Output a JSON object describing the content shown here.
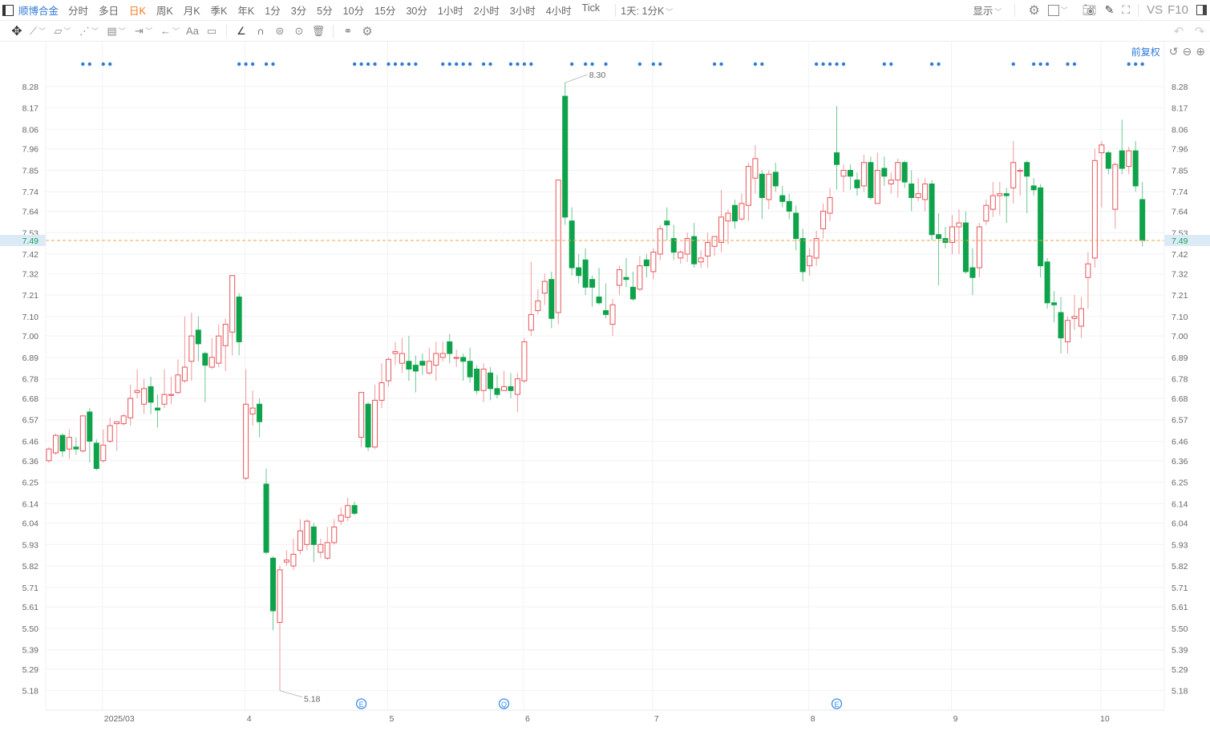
{
  "toolbar": {
    "panel_icon": "panel-toggle-icon",
    "symbol": "顺博合金",
    "timeframes": [
      "分时",
      "多日",
      "日K",
      "周K",
      "月K",
      "季K",
      "年K",
      "1分",
      "3分",
      "5分",
      "10分",
      "15分",
      "30分",
      "1小时",
      "2小时",
      "3小时",
      "4小时",
      "Tick"
    ],
    "active_timeframe": "日K",
    "period_select": "1天: 1分K",
    "display_label": "显示",
    "right_icons": [
      "gear-icon",
      "square-icon",
      "camera-icon",
      "pencil-icon",
      "fullscreen-icon"
    ],
    "vs_label": "VS",
    "f10_label": "F10"
  },
  "drawing_tools": {
    "icons": [
      "move-icon",
      "line-tool-icon",
      "channel-tool-icon",
      "wave-tool-icon",
      "fib-tool-icon",
      "range-tool-icon",
      "arrow-tool-icon",
      "text-tool-icon",
      "comment-tool-icon",
      "angle-tool-icon",
      "magnet-icon",
      "lock-icon",
      "eye-icon",
      "trash-icon",
      "link-icon",
      "settings-icon"
    ],
    "text_tool": "Aa",
    "undo_icon": "undo-icon",
    "redo_icon": "redo-icon"
  },
  "adjust": {
    "label": "前复权",
    "icons": [
      "reset-icon",
      "zoom-out-icon",
      "zoom-in-icon"
    ]
  },
  "colors": {
    "up": "#e8555a",
    "down": "#0ea34a",
    "accent": "#2f7bd8",
    "active": "#f07a1a",
    "last_price_line": "#f0a050"
  },
  "chart_data": {
    "type": "candlestick",
    "ohlc_order": [
      "open",
      "high",
      "low",
      "close"
    ],
    "ylim": [
      5.08,
      8.51
    ],
    "yticks": [
      "8.28",
      "8.17",
      "8.06",
      "7.96",
      "7.85",
      "7.74",
      "7.64",
      "7.53",
      "7.42",
      "7.32",
      "7.21",
      "7.10",
      "7.00",
      "6.89",
      "6.78",
      "6.68",
      "6.57",
      "6.46",
      "6.36",
      "6.25",
      "6.14",
      "6.04",
      "5.93",
      "5.82",
      "5.71",
      "5.61",
      "5.50",
      "5.39",
      "5.29",
      "5.18"
    ],
    "xticks": [
      "2025/03",
      "4",
      "5",
      "6",
      "7",
      "8",
      "9",
      "10"
    ],
    "last_price": "7.49",
    "max_label": "8.30",
    "min_label": "5.18",
    "grid": true,
    "event_markers": [
      "E",
      "Q",
      "E"
    ],
    "candles": [
      [
        6.36,
        6.43,
        6.35,
        6.42
      ],
      [
        6.4,
        6.5,
        6.39,
        6.49
      ],
      [
        6.49,
        6.5,
        6.38,
        6.41
      ],
      [
        6.42,
        6.52,
        6.37,
        6.48
      ],
      [
        6.43,
        6.48,
        6.39,
        6.42
      ],
      [
        6.41,
        6.59,
        6.4,
        6.59
      ],
      [
        6.61,
        6.63,
        6.35,
        6.46
      ],
      [
        6.45,
        6.47,
        6.31,
        6.32
      ],
      [
        6.36,
        6.52,
        6.35,
        6.44
      ],
      [
        6.46,
        6.58,
        6.45,
        6.54
      ],
      [
        6.55,
        6.56,
        6.41,
        6.56
      ],
      [
        6.55,
        6.6,
        6.54,
        6.59
      ],
      [
        6.58,
        6.75,
        6.54,
        6.68
      ],
      [
        6.71,
        6.83,
        6.68,
        6.72
      ],
      [
        6.65,
        6.78,
        6.6,
        6.73
      ],
      [
        6.74,
        6.79,
        6.6,
        6.66
      ],
      [
        6.63,
        6.7,
        6.53,
        6.62
      ],
      [
        6.65,
        6.83,
        6.63,
        6.7
      ],
      [
        6.7,
        6.79,
        6.65,
        6.7
      ],
      [
        6.71,
        6.88,
        6.7,
        6.8
      ],
      [
        6.77,
        7.1,
        6.76,
        6.84
      ],
      [
        6.87,
        7.12,
        6.77,
        7.0
      ],
      [
        7.03,
        7.1,
        6.87,
        6.96
      ],
      [
        6.91,
        6.92,
        6.66,
        6.85
      ],
      [
        6.84,
        6.99,
        6.83,
        6.89
      ],
      [
        6.86,
        7.06,
        6.84,
        7.0
      ],
      [
        6.95,
        7.09,
        6.82,
        7.06
      ],
      [
        7.02,
        7.31,
        6.9,
        7.31
      ],
      [
        7.2,
        7.22,
        6.9,
        6.97
      ],
      [
        6.27,
        6.83,
        6.26,
        6.65
      ],
      [
        6.6,
        6.72,
        6.54,
        6.63
      ],
      [
        6.65,
        6.68,
        6.48,
        6.56
      ],
      [
        6.24,
        6.32,
        5.88,
        5.89
      ],
      [
        5.86,
        5.87,
        5.49,
        5.59
      ],
      [
        5.53,
        5.82,
        5.18,
        5.8
      ],
      [
        5.84,
        5.9,
        5.82,
        5.85
      ],
      [
        5.82,
        5.96,
        5.8,
        5.88
      ],
      [
        5.9,
        6.06,
        5.88,
        6.0
      ],
      [
        5.93,
        6.06,
        5.9,
        6.05
      ],
      [
        6.02,
        6.04,
        5.84,
        5.93
      ],
      [
        5.89,
        5.96,
        5.86,
        5.93
      ],
      [
        5.86,
        6.02,
        5.85,
        5.94
      ],
      [
        5.94,
        6.06,
        5.93,
        6.02
      ],
      [
        6.05,
        6.12,
        6.03,
        6.08
      ],
      [
        6.07,
        6.17,
        6.05,
        6.13
      ],
      [
        6.13,
        6.15,
        6.08,
        6.09
      ],
      [
        6.48,
        6.71,
        6.43,
        6.71
      ],
      [
        6.65,
        6.66,
        6.41,
        6.43
      ],
      [
        6.43,
        6.75,
        6.42,
        6.67
      ],
      [
        6.67,
        6.86,
        6.63,
        6.76
      ],
      [
        6.77,
        6.89,
        6.74,
        6.88
      ],
      [
        6.91,
        6.97,
        6.85,
        6.92
      ],
      [
        6.86,
        6.99,
        6.81,
        6.91
      ],
      [
        6.87,
        7.0,
        6.77,
        6.83
      ],
      [
        6.85,
        6.9,
        6.71,
        6.82
      ],
      [
        6.87,
        6.91,
        6.8,
        6.85
      ],
      [
        6.81,
        6.94,
        6.8,
        6.87
      ],
      [
        6.85,
        6.97,
        6.77,
        6.91
      ],
      [
        6.89,
        6.97,
        6.87,
        6.91
      ],
      [
        6.97,
        7.01,
        6.86,
        6.91
      ],
      [
        6.89,
        6.93,
        6.84,
        6.89
      ],
      [
        6.89,
        6.91,
        6.77,
        6.87
      ],
      [
        6.87,
        6.94,
        6.76,
        6.79
      ],
      [
        6.83,
        6.85,
        6.7,
        6.72
      ],
      [
        6.72,
        6.86,
        6.66,
        6.83
      ],
      [
        6.81,
        6.84,
        6.67,
        6.73
      ],
      [
        6.73,
        6.8,
        6.68,
        6.7
      ],
      [
        6.72,
        6.82,
        6.72,
        6.74
      ],
      [
        6.74,
        6.81,
        6.68,
        6.72
      ],
      [
        6.7,
        6.81,
        6.61,
        6.78
      ],
      [
        6.77,
        6.99,
        6.76,
        6.97
      ],
      [
        7.03,
        7.38,
        7.0,
        7.11
      ],
      [
        7.13,
        7.24,
        7.11,
        7.18
      ],
      [
        7.22,
        7.32,
        7.16,
        7.28
      ],
      [
        7.29,
        7.33,
        7.04,
        7.09
      ],
      [
        7.12,
        7.8,
        7.06,
        7.8
      ],
      [
        8.23,
        8.3,
        7.57,
        7.61
      ],
      [
        7.59,
        7.66,
        7.31,
        7.35
      ],
      [
        7.35,
        7.42,
        7.27,
        7.31
      ],
      [
        7.39,
        7.45,
        7.21,
        7.25
      ],
      [
        7.29,
        7.31,
        7.15,
        7.25
      ],
      [
        7.2,
        7.35,
        7.16,
        7.17
      ],
      [
        7.13,
        7.27,
        7.09,
        7.11
      ],
      [
        7.06,
        7.19,
        7.0,
        7.16
      ],
      [
        7.26,
        7.36,
        7.21,
        7.34
      ],
      [
        7.3,
        7.4,
        7.25,
        7.29
      ],
      [
        7.25,
        7.33,
        7.18,
        7.19
      ],
      [
        7.24,
        7.41,
        7.23,
        7.36
      ],
      [
        7.39,
        7.42,
        7.3,
        7.36
      ],
      [
        7.33,
        7.45,
        7.29,
        7.43
      ],
      [
        7.42,
        7.57,
        7.39,
        7.55
      ],
      [
        7.59,
        7.66,
        7.49,
        7.57
      ],
      [
        7.5,
        7.57,
        7.39,
        7.43
      ],
      [
        7.4,
        7.44,
        7.37,
        7.43
      ],
      [
        7.42,
        7.53,
        7.38,
        7.5
      ],
      [
        7.51,
        7.58,
        7.35,
        7.37
      ],
      [
        7.38,
        7.44,
        7.35,
        7.4
      ],
      [
        7.41,
        7.53,
        7.35,
        7.48
      ],
      [
        7.46,
        7.51,
        7.41,
        7.51
      ],
      [
        7.48,
        7.75,
        7.43,
        7.61
      ],
      [
        7.59,
        7.65,
        7.47,
        7.63
      ],
      [
        7.67,
        7.7,
        7.55,
        7.59
      ],
      [
        7.6,
        7.73,
        7.59,
        7.68
      ],
      [
        7.67,
        7.89,
        7.59,
        7.87
      ],
      [
        7.81,
        7.98,
        7.73,
        7.91
      ],
      [
        7.83,
        7.85,
        7.6,
        7.71
      ],
      [
        7.7,
        7.85,
        7.65,
        7.83
      ],
      [
        7.84,
        7.89,
        7.74,
        7.77
      ],
      [
        7.72,
        7.77,
        7.66,
        7.69
      ],
      [
        7.69,
        7.73,
        7.6,
        7.64
      ],
      [
        7.63,
        7.67,
        7.44,
        7.5
      ],
      [
        7.5,
        7.55,
        7.28,
        7.33
      ],
      [
        7.36,
        7.45,
        7.31,
        7.41
      ],
      [
        7.4,
        7.54,
        7.36,
        7.5
      ],
      [
        7.55,
        7.68,
        7.5,
        7.64
      ],
      [
        7.63,
        7.76,
        7.59,
        7.71
      ],
      [
        7.94,
        8.18,
        7.75,
        7.88
      ],
      [
        7.82,
        7.88,
        7.74,
        7.85
      ],
      [
        7.85,
        7.88,
        7.75,
        7.82
      ],
      [
        7.8,
        7.84,
        7.72,
        7.76
      ],
      [
        7.77,
        7.93,
        7.74,
        7.89
      ],
      [
        7.89,
        7.92,
        7.7,
        7.71
      ],
      [
        7.68,
        7.94,
        7.68,
        7.85
      ],
      [
        7.86,
        7.92,
        7.77,
        7.82
      ],
      [
        7.78,
        7.84,
        7.73,
        7.8
      ],
      [
        7.8,
        7.91,
        7.71,
        7.89
      ],
      [
        7.89,
        7.9,
        7.76,
        7.79
      ],
      [
        7.78,
        7.85,
        7.64,
        7.71
      ],
      [
        7.71,
        7.81,
        7.69,
        7.73
      ],
      [
        7.7,
        7.81,
        7.64,
        7.78
      ],
      [
        7.78,
        7.8,
        7.49,
        7.52
      ],
      [
        7.52,
        7.63,
        7.26,
        7.5
      ],
      [
        7.5,
        7.56,
        7.45,
        7.48
      ],
      [
        7.48,
        7.62,
        7.42,
        7.56
      ],
      [
        7.56,
        7.65,
        7.42,
        7.58
      ],
      [
        7.58,
        7.64,
        7.32,
        7.33
      ],
      [
        7.35,
        7.45,
        7.21,
        7.3
      ],
      [
        7.35,
        7.58,
        7.3,
        7.56
      ],
      [
        7.59,
        7.7,
        7.57,
        7.67
      ],
      [
        7.65,
        7.79,
        7.61,
        7.72
      ],
      [
        7.72,
        7.79,
        7.62,
        7.73
      ],
      [
        7.73,
        7.76,
        7.58,
        7.72
      ],
      [
        7.76,
        8.0,
        7.68,
        7.89
      ],
      [
        7.85,
        7.86,
        7.72,
        7.85
      ],
      [
        7.89,
        7.9,
        7.63,
        7.82
      ],
      [
        7.77,
        7.81,
        7.72,
        7.75
      ],
      [
        7.76,
        7.78,
        7.3,
        7.36
      ],
      [
        7.38,
        7.4,
        7.14,
        7.17
      ],
      [
        7.17,
        7.23,
        7.07,
        7.16
      ],
      [
        7.12,
        7.2,
        6.91,
        6.99
      ],
      [
        6.97,
        7.1,
        6.91,
        7.08
      ],
      [
        7.09,
        7.21,
        7.03,
        7.1
      ],
      [
        7.05,
        7.2,
        6.99,
        7.14
      ],
      [
        7.3,
        7.43,
        7.14,
        7.37
      ],
      [
        7.4,
        7.96,
        7.35,
        7.9
      ],
      [
        7.94,
        8.0,
        7.66,
        7.98
      ],
      [
        7.94,
        7.95,
        7.83,
        7.86
      ],
      [
        7.65,
        7.89,
        7.55,
        7.88
      ],
      [
        7.95,
        8.11,
        7.83,
        7.86
      ],
      [
        7.87,
        7.97,
        7.83,
        7.95
      ],
      [
        7.95,
        8.0,
        7.74,
        7.77
      ],
      [
        7.7,
        7.79,
        7.46,
        7.49
      ]
    ]
  }
}
